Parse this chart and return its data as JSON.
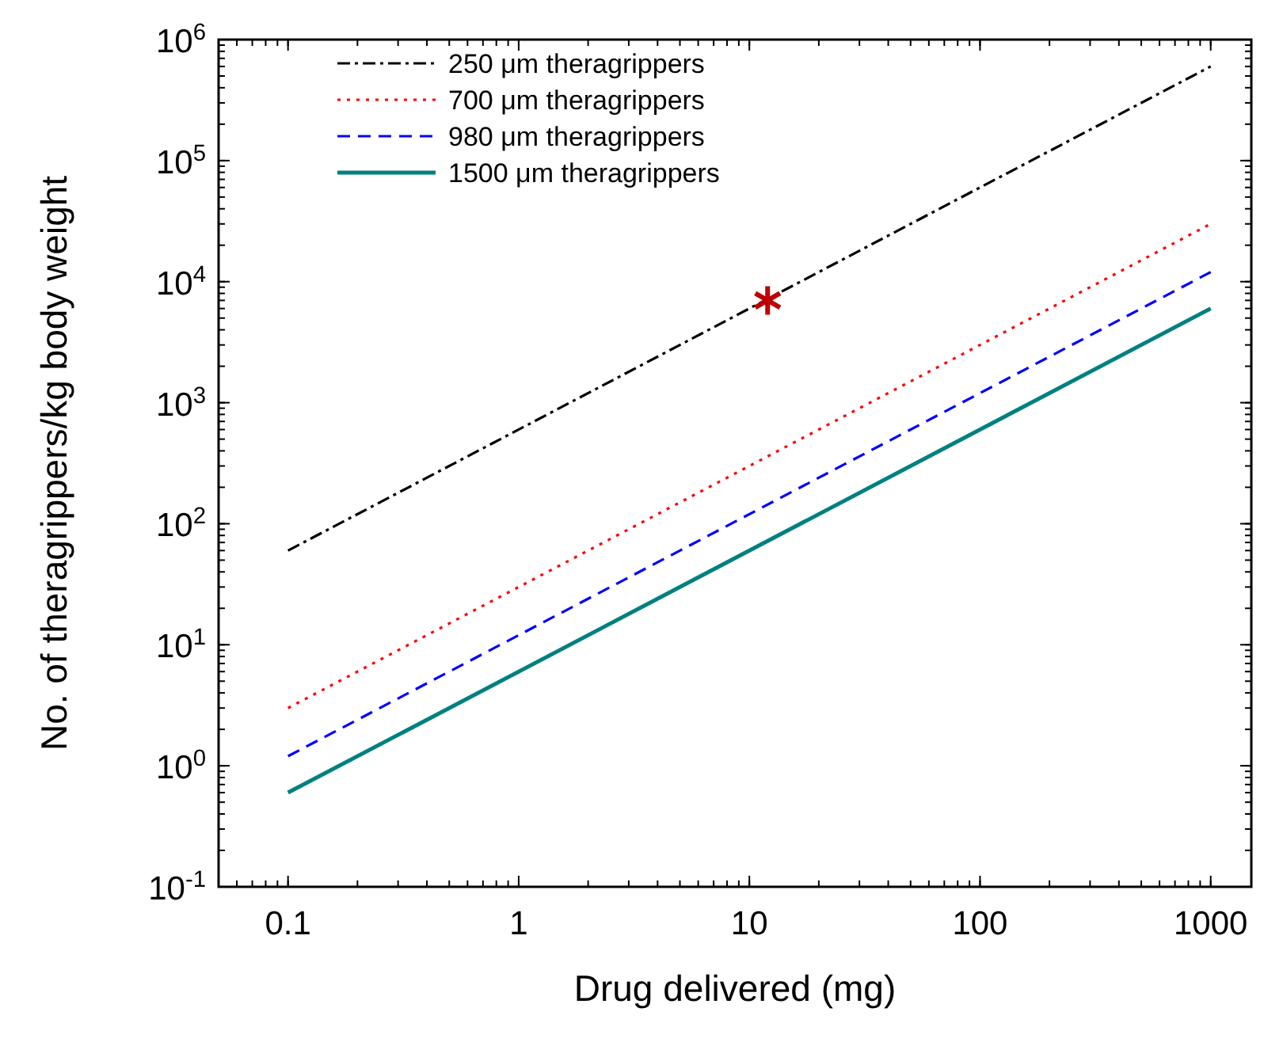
{
  "chart_data": {
    "type": "line",
    "xlabel": "Drug delivered (mg)",
    "ylabel": "No. of theragrippers/kg body weight",
    "log": "xy",
    "xlim": [
      0.05,
      1500
    ],
    "ylim": [
      0.1,
      1000000
    ],
    "xticks": [
      0.1,
      1,
      10,
      100,
      1000
    ],
    "yticks": [
      {
        "value": 0.1,
        "label": "10$^{-1}$"
      },
      {
        "value": 1,
        "label": "10$^{0}$"
      },
      {
        "value": 10,
        "label": "10$^{1}$"
      },
      {
        "value": 100,
        "label": "10$^{2}$"
      },
      {
        "value": 1000,
        "label": "10$^{3}$"
      },
      {
        "value": 10000,
        "label": "10$^{4}$"
      },
      {
        "value": 100000,
        "label": "10$^{5}$"
      },
      {
        "value": 1000000,
        "label": "10$^{6}$"
      }
    ],
    "grid": false,
    "legend": "top left",
    "marker": "none",
    "series": [
      {
        "name": "250 μm theragrippers",
        "color": "#000000",
        "line_style": "dashdot",
        "x": [
          0.1,
          1000
        ],
        "values": [
          60,
          600000
        ]
      },
      {
        "name": "700 μm theragrippers",
        "color": "#ff0000",
        "line_style": "dotted",
        "x": [
          0.1,
          1000
        ],
        "values": [
          3,
          30000
        ]
      },
      {
        "name": "980 μm theragrippers",
        "color": "#0000ff",
        "line_style": "dashed",
        "x": [
          0.1,
          1000
        ],
        "values": [
          1.2,
          12000
        ]
      },
      {
        "name": "1500 μm theragrippers",
        "color": "#008080",
        "line_style": "solid",
        "x": [
          0.1,
          1000
        ],
        "values": [
          0.6,
          6000
        ]
      },
      {
        "type": "scatter",
        "marker": "cross",
        "color": "#c00000",
        "x": [
          12
        ],
        "values": [
          7000
        ]
      }
    ]
  }
}
